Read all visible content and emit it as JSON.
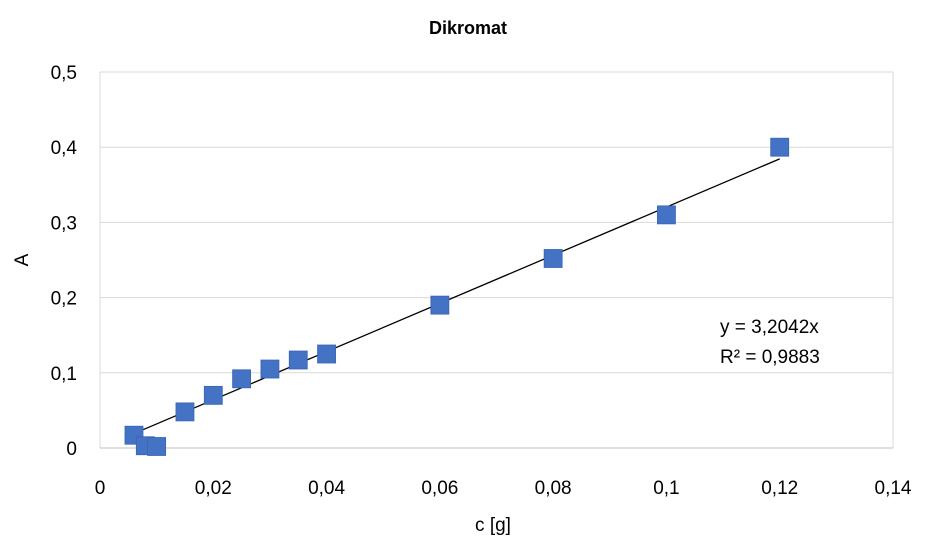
{
  "chart_data": {
    "type": "scatter",
    "title": "Dikromat",
    "xlabel": "c [g]",
    "ylabel": "A",
    "xlim": [
      0,
      0.14
    ],
    "ylim": [
      0,
      0.5
    ],
    "x_ticks": [
      0,
      0.02,
      0.04,
      0.06,
      0.08,
      0.1,
      0.12,
      0.14
    ],
    "x_tick_labels": [
      "0",
      "0,02",
      "0,04",
      "0,06",
      "0,08",
      "0,1",
      "0,12",
      "0,14"
    ],
    "y_ticks": [
      0,
      0.1,
      0.2,
      0.3,
      0.4,
      0.5
    ],
    "y_tick_labels": [
      "0",
      "0,1",
      "0,2",
      "0,3",
      "0,4",
      "0,5"
    ],
    "grid": true,
    "series": [
      {
        "marker": "square",
        "color": "#4472C4",
        "points": [
          {
            "x": 0.006,
            "y": 0.017
          },
          {
            "x": 0.008,
            "y": 0.003
          },
          {
            "x": 0.01,
            "y": 0.002
          },
          {
            "x": 0.015,
            "y": 0.048
          },
          {
            "x": 0.02,
            "y": 0.07
          },
          {
            "x": 0.025,
            "y": 0.092
          },
          {
            "x": 0.03,
            "y": 0.105
          },
          {
            "x": 0.035,
            "y": 0.117
          },
          {
            "x": 0.04,
            "y": 0.125
          },
          {
            "x": 0.06,
            "y": 0.19
          },
          {
            "x": 0.08,
            "y": 0.252
          },
          {
            "x": 0.1,
            "y": 0.31
          },
          {
            "x": 0.12,
            "y": 0.4
          }
        ]
      }
    ],
    "trendline": {
      "type": "linear",
      "slope": 3.2042,
      "intercept": 0,
      "x_range": [
        0.006,
        0.12
      ],
      "color": "#000000",
      "equation_text": "y = 3,2042x",
      "r2_text": "R² = 0,9883"
    }
  }
}
